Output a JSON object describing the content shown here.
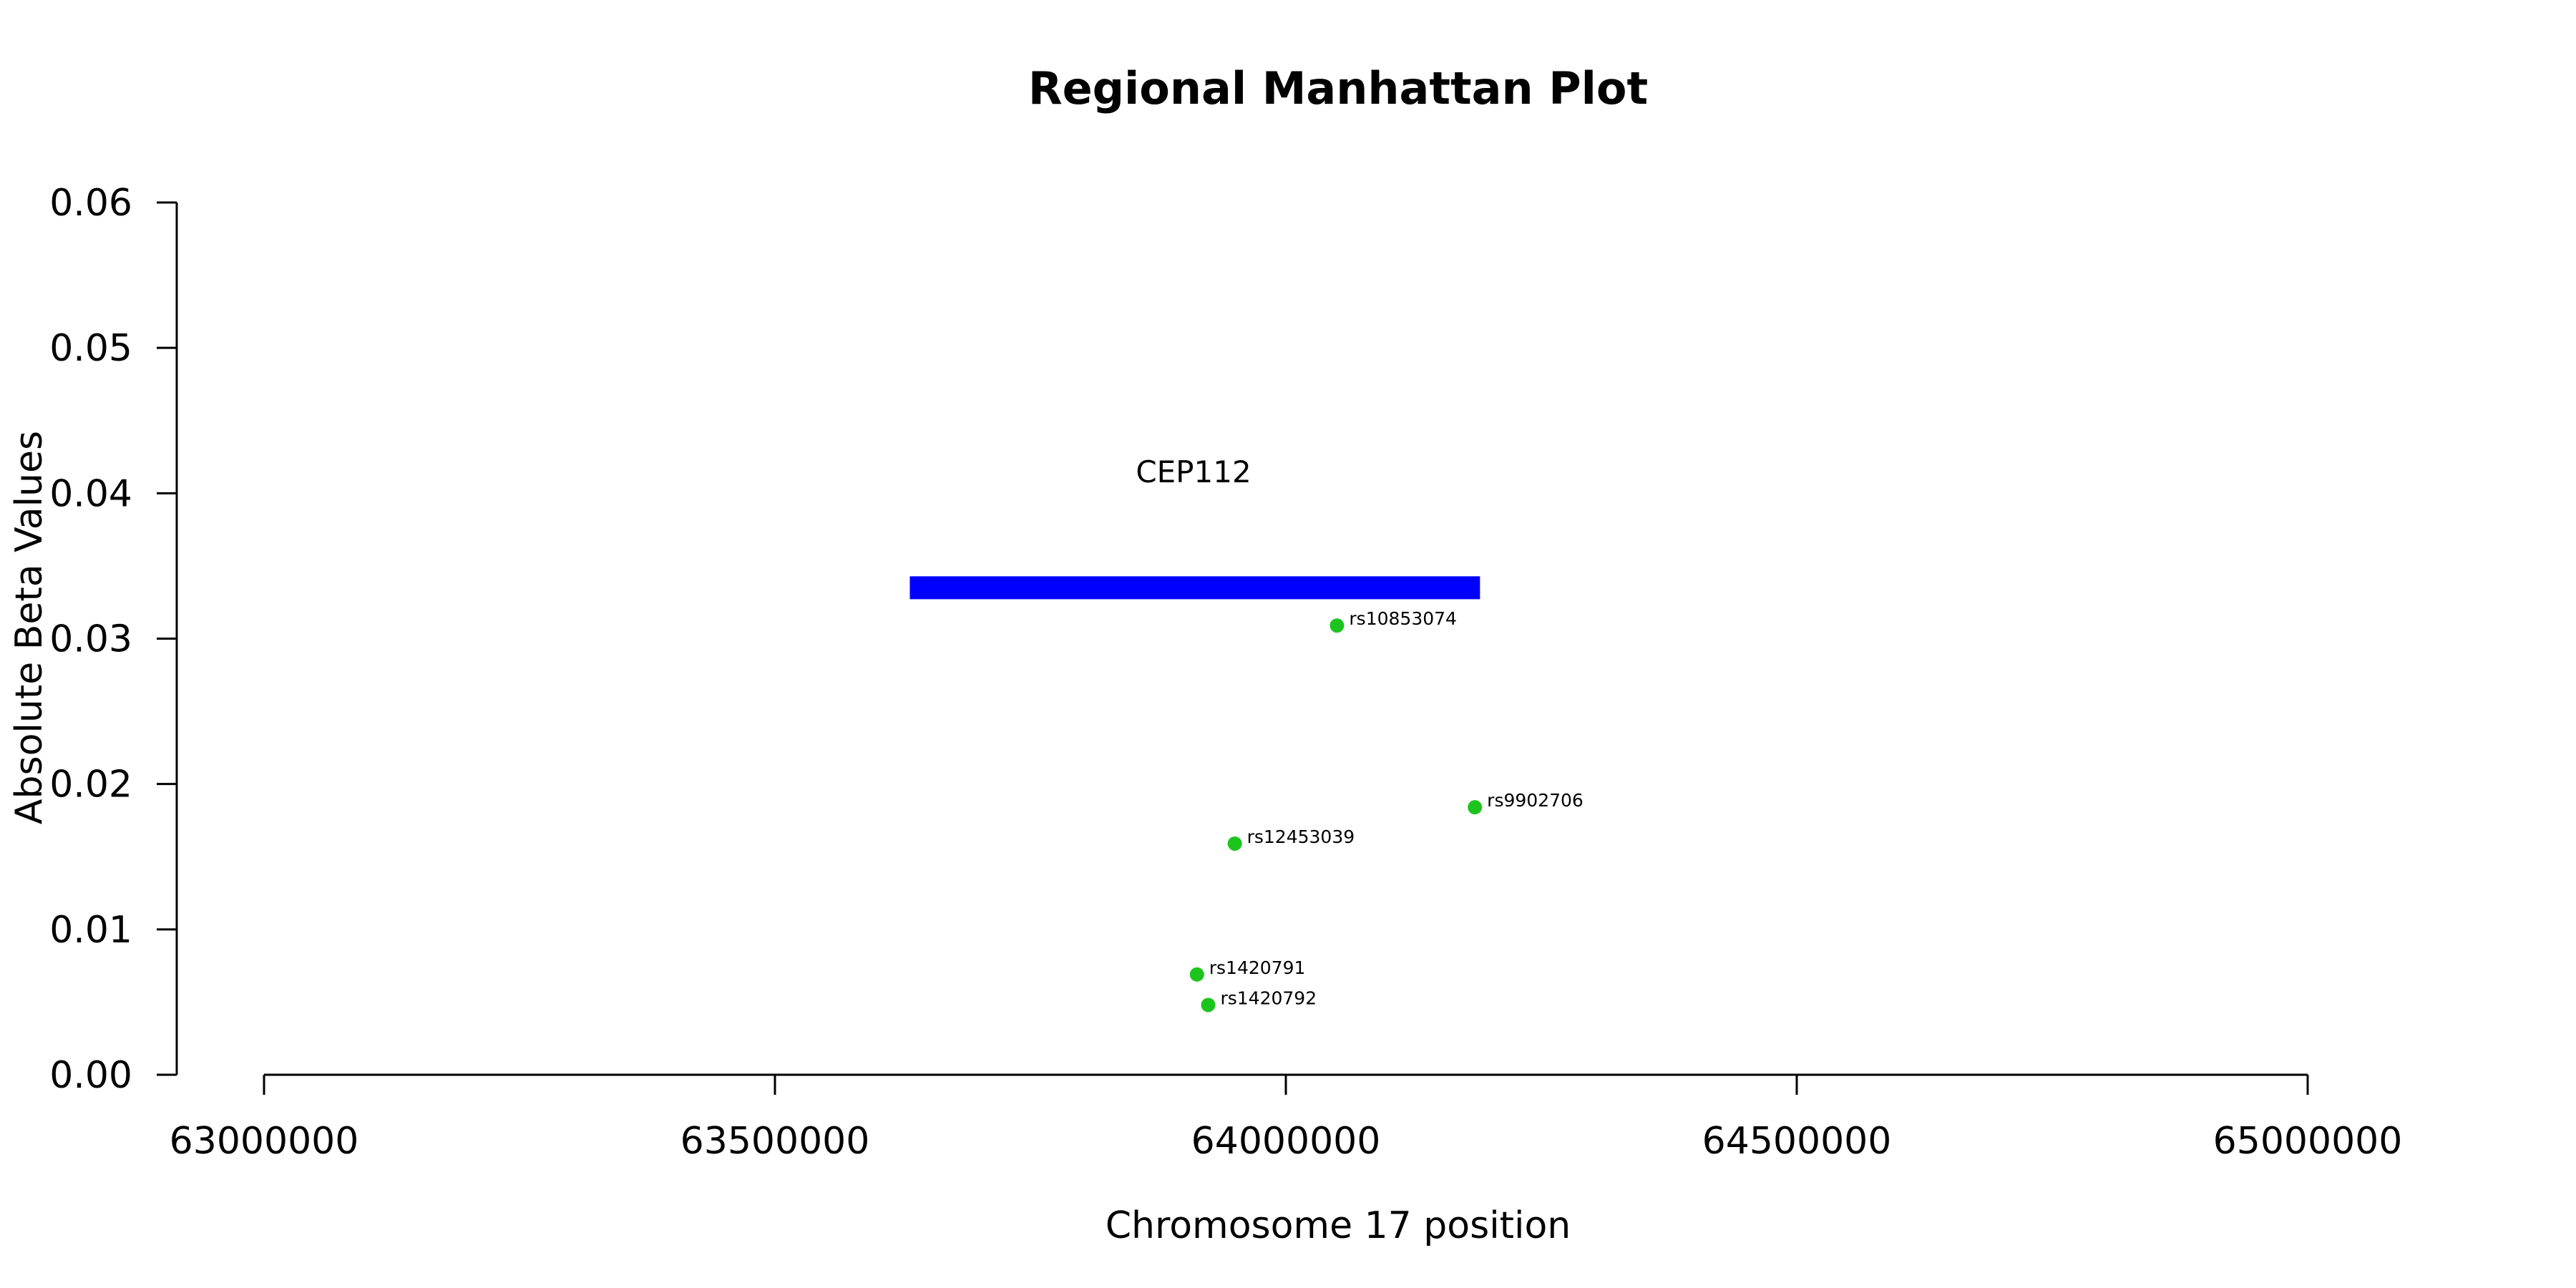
{
  "chart_data": {
    "type": "scatter",
    "title": "Regional Manhattan Plot",
    "xlabel": "Chromosome 17 position",
    "ylabel": "Absolute Beta Values",
    "xlim": [
      63000000,
      65000000
    ],
    "ylim": [
      0,
      0.06
    ],
    "x_ticks": [
      "63000000",
      "63500000",
      "64000000",
      "64500000",
      "65000000"
    ],
    "y_ticks": [
      "0.00",
      "0.01",
      "0.02",
      "0.03",
      "0.04",
      "0.05",
      "0.06"
    ],
    "grid": false,
    "point_color": "#1ec41e",
    "points": [
      {
        "label": "rs10853074",
        "x": 64050000,
        "y": 0.0309
      },
      {
        "label": "rs9902706",
        "x": 64185000,
        "y": 0.0184
      },
      {
        "label": "rs12453039",
        "x": 63950000,
        "y": 0.0159
      },
      {
        "label": "rs1420791",
        "x": 63913000,
        "y": 0.0069
      },
      {
        "label": "rs1420792",
        "x": 63924000,
        "y": 0.0048
      }
    ],
    "gene": {
      "name": "CEP112",
      "start": 63632000,
      "end": 64190000,
      "y": 0.0335,
      "color": "#0000ff"
    }
  }
}
